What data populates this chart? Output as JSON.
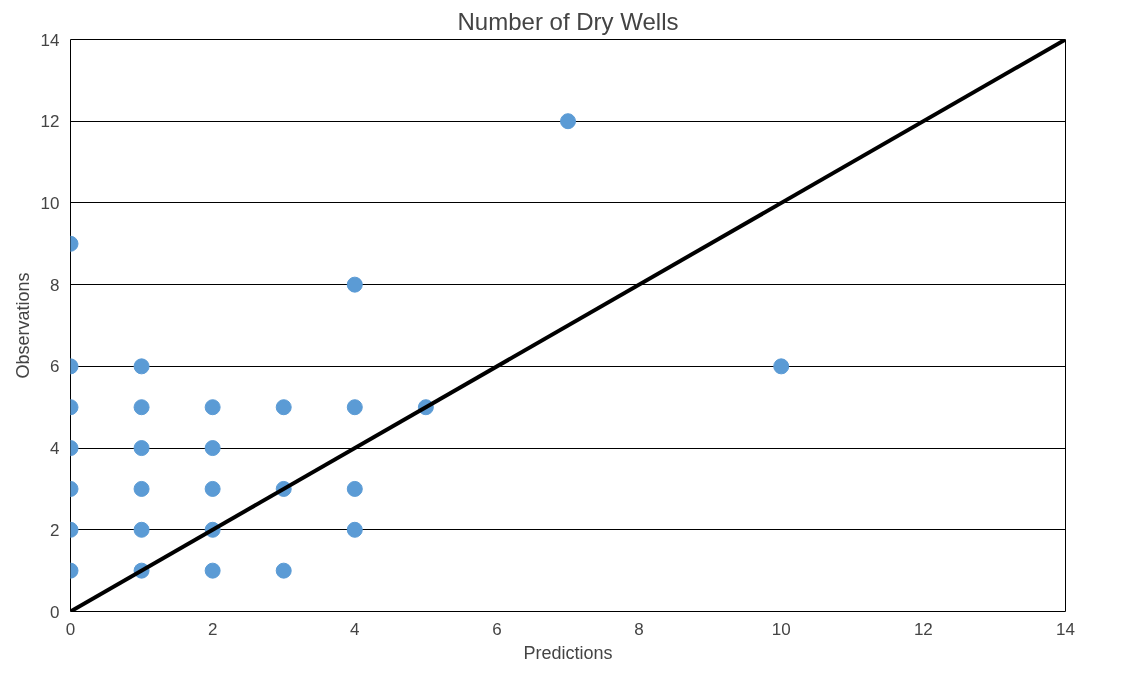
{
  "chart_data": {
    "type": "scatter",
    "title": "Number of Dry Wells",
    "xlabel": "Predictions",
    "ylabel": "Observations",
    "xlim": [
      0,
      14
    ],
    "ylim": [
      0,
      14
    ],
    "xticks": [
      0,
      2,
      4,
      6,
      8,
      10,
      12,
      14
    ],
    "yticks": [
      0,
      2,
      4,
      6,
      8,
      10,
      12,
      14
    ],
    "grid": "y",
    "series": [
      {
        "color": "#5b9bd5",
        "marker": "circle",
        "x": [
          0,
          0,
          0,
          0,
          0,
          0,
          0,
          1,
          1,
          1,
          1,
          1,
          1,
          2,
          2,
          2,
          2,
          2,
          3,
          3,
          3,
          4,
          4,
          4,
          4,
          5,
          7,
          10
        ],
        "values": [
          1,
          2,
          3,
          4,
          5,
          6,
          9,
          1,
          2,
          3,
          4,
          5,
          6,
          1,
          2,
          3,
          4,
          5,
          1,
          3,
          5,
          2,
          3,
          5,
          8,
          5,
          12,
          6
        ]
      },
      {
        "type": "line",
        "color": "#000000",
        "line_style": "solid",
        "x": [
          0,
          14
        ],
        "values": [
          0,
          14
        ]
      }
    ]
  }
}
